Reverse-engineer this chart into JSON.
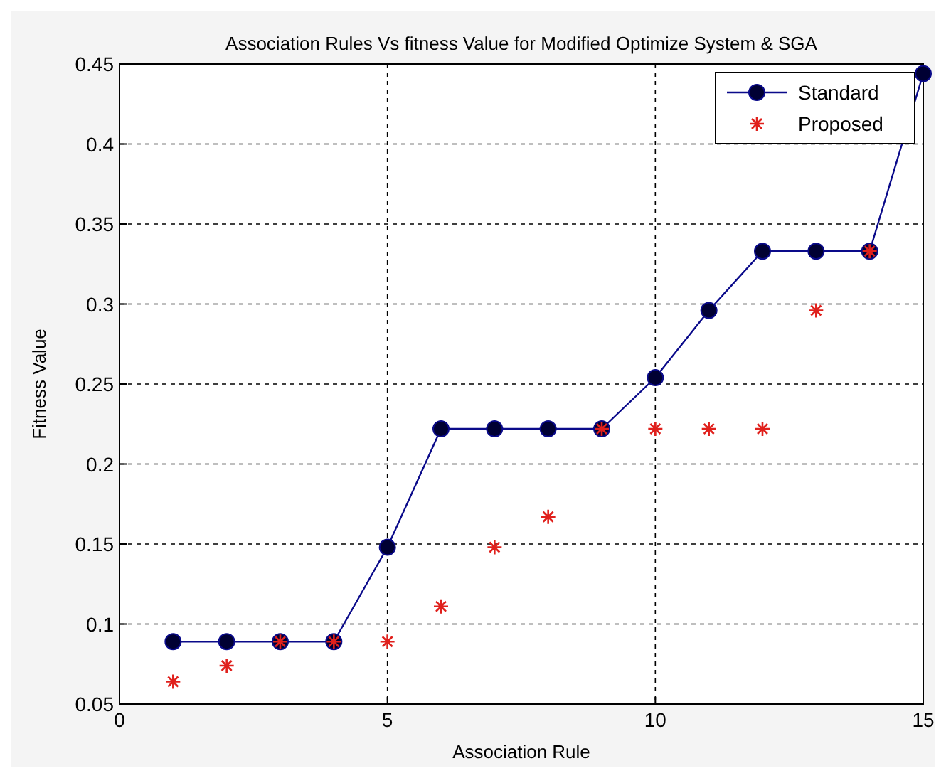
{
  "chart_data": {
    "type": "line",
    "title": "Association Rules Vs fitness Value for Modified Optimize System & SGA",
    "xlabel": "Association Rule",
    "ylabel": "Fitness Value",
    "x": [
      1,
      2,
      3,
      4,
      5,
      6,
      7,
      8,
      9,
      10,
      11,
      12,
      13,
      14,
      15
    ],
    "series": [
      {
        "name": "Standard",
        "color": "#0a0a8a",
        "marker": "circle",
        "line_style": "solid",
        "values": [
          0.089,
          0.089,
          0.089,
          0.089,
          0.148,
          0.222,
          0.222,
          0.222,
          0.222,
          0.254,
          0.296,
          0.333,
          0.333,
          0.333,
          0.444
        ]
      },
      {
        "name": "Proposed",
        "type": "scatter",
        "color": "#e0201c",
        "marker": "cross",
        "x": [
          1,
          2,
          3,
          4,
          5,
          6,
          7,
          8,
          9,
          10,
          11,
          12,
          13,
          14
        ],
        "values": [
          0.064,
          0.074,
          0.089,
          0.089,
          0.089,
          0.111,
          0.148,
          0.167,
          0.222,
          0.222,
          0.222,
          0.222,
          0.296,
          0.333
        ]
      }
    ],
    "xlim": [
      0,
      15
    ],
    "xticks": [
      0,
      5,
      10,
      15
    ],
    "ylim": [
      0.05,
      0.45
    ],
    "yticks": [
      0.05,
      0.1,
      0.15,
      0.2,
      0.25,
      0.3,
      0.35,
      0.4,
      0.45
    ],
    "grid": true,
    "legend": "top right"
  }
}
